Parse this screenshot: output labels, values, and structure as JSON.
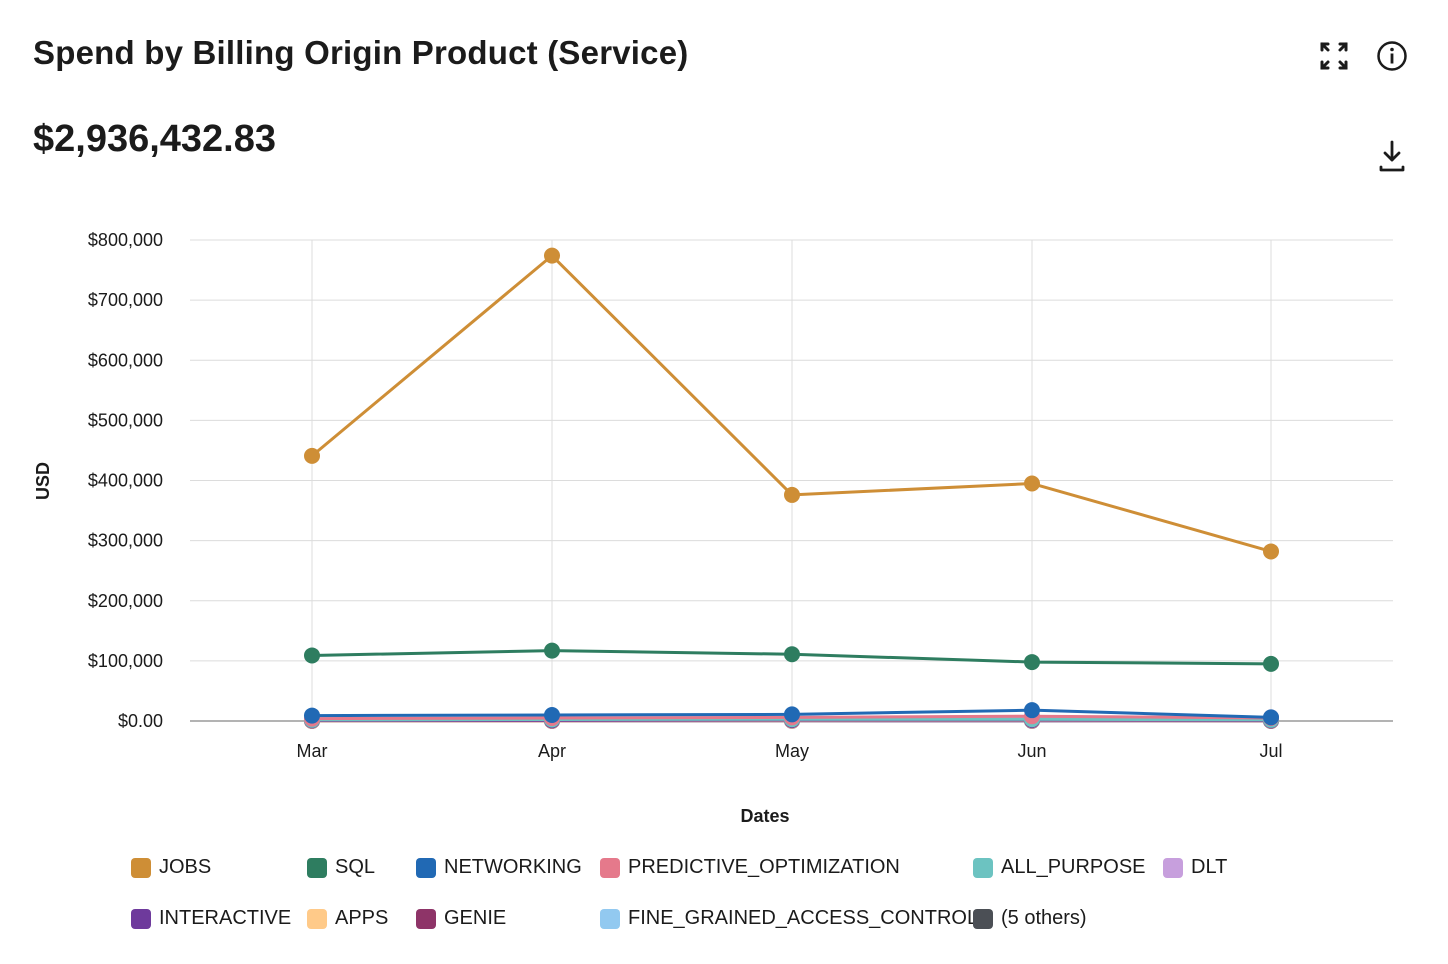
{
  "header": {
    "title": "Spend by Billing Origin Product (Service)",
    "total": "$2,936,432.83"
  },
  "icons": {
    "expand": "expand-icon",
    "info": "info-icon",
    "download": "download-icon"
  },
  "chart_data": {
    "type": "line",
    "categories": [
      "Mar",
      "Apr",
      "May",
      "Jun",
      "Jul"
    ],
    "xlabel": "Dates",
    "ylabel": "USD",
    "ylim": [
      0,
      800000
    ],
    "yticks": [
      {
        "value": 0,
        "label": "$0.00"
      },
      {
        "value": 100000,
        "label": "$100,000"
      },
      {
        "value": 200000,
        "label": "$200,000"
      },
      {
        "value": 300000,
        "label": "$300,000"
      },
      {
        "value": 400000,
        "label": "$400,000"
      },
      {
        "value": 500000,
        "label": "$500,000"
      },
      {
        "value": 600000,
        "label": "$600,000"
      },
      {
        "value": 700000,
        "label": "$700,000"
      },
      {
        "value": 800000,
        "label": "$800,000"
      }
    ],
    "grid": true,
    "legend_position": "bottom",
    "series": [
      {
        "name": "JOBS",
        "color": "#CE8E36",
        "values": [
          441000,
          774000,
          376000,
          395000,
          282000
        ]
      },
      {
        "name": "SQL",
        "color": "#2E7D60",
        "values": [
          109000,
          117000,
          111000,
          98000,
          95000
        ]
      },
      {
        "name": "NETWORKING",
        "color": "#2169B4",
        "values": [
          9000,
          10000,
          11000,
          18000,
          6000
        ]
      },
      {
        "name": "PREDICTIVE_OPTIMIZATION",
        "color": "#E5798B",
        "values": [
          4000,
          5000,
          6000,
          8000,
          5000
        ]
      },
      {
        "name": "ALL_PURPOSE",
        "color": "#6CC3C1",
        "values": [
          2000,
          2500,
          3000,
          3000,
          2000
        ]
      },
      {
        "name": "DLT",
        "color": "#C79FDD",
        "values": [
          3000,
          3500,
          4000,
          4500,
          6000
        ]
      },
      {
        "name": "INTERACTIVE",
        "color": "#6E3A9C",
        "values": [
          1000,
          1000,
          1500,
          1500,
          1000
        ]
      },
      {
        "name": "APPS",
        "color": "#FFCA89",
        "values": [
          500,
          500,
          700,
          800,
          600
        ]
      },
      {
        "name": "GENIE",
        "color": "#8E3468",
        "values": [
          300,
          300,
          400,
          400,
          300
        ]
      },
      {
        "name": "FINE_GRAINED_ACCESS_CONTROL",
        "color": "#92C9F0",
        "values": [
          200,
          200,
          300,
          300,
          200
        ]
      },
      {
        "name": "(5 others)",
        "color": "#4B4F55",
        "values": [
          100,
          100,
          200,
          200,
          100
        ]
      }
    ]
  }
}
